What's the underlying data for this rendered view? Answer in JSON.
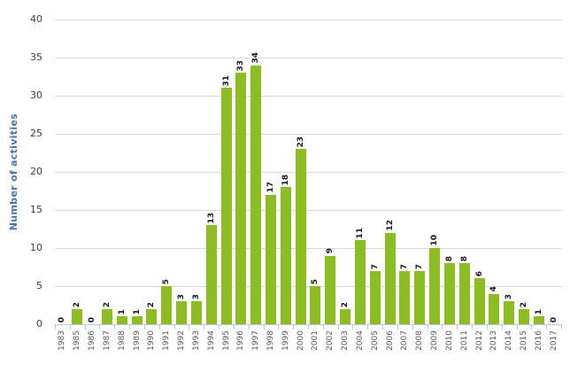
{
  "chart_data": {
    "type": "bar",
    "title": "",
    "xlabel": "",
    "ylabel": "Number of activities",
    "categories": [
      "1983",
      "1985",
      "1986",
      "1987",
      "1988",
      "1989",
      "1990",
      "1991",
      "1992",
      "1993",
      "1994",
      "1995",
      "1996",
      "1997",
      "1998",
      "1999",
      "2000",
      "2001",
      "2002",
      "2003",
      "2004",
      "2005",
      "2006",
      "2007",
      "2008",
      "2009",
      "2010",
      "2011",
      "2012",
      "2013",
      "2014",
      "2015",
      "2016",
      "2017"
    ],
    "values": [
      0,
      2,
      0,
      2,
      1,
      1,
      2,
      5,
      3,
      3,
      13,
      31,
      33,
      34,
      17,
      18,
      23,
      5,
      9,
      2,
      11,
      7,
      12,
      7,
      7,
      10,
      8,
      8,
      6,
      4,
      3,
      2,
      1,
      0
    ],
    "ylim": [
      0,
      40
    ],
    "yticks": [
      0,
      5,
      10,
      15,
      20,
      25,
      30,
      35,
      40
    ],
    "grid": "horizontal",
    "legend_position": "none",
    "data_labels": "rotated above bars",
    "x_label_rotation": "vertical"
  },
  "colors": {
    "background": "#FFFFFF",
    "bar": "#8CBE23",
    "gridline": "#D9D9D9",
    "axis_line": "#B9CBDB",
    "ylabel_text": "#4576B5",
    "ytick_text": "#404040",
    "xtick_text": "#595959",
    "value_label_text": "#1A1A1A"
  }
}
